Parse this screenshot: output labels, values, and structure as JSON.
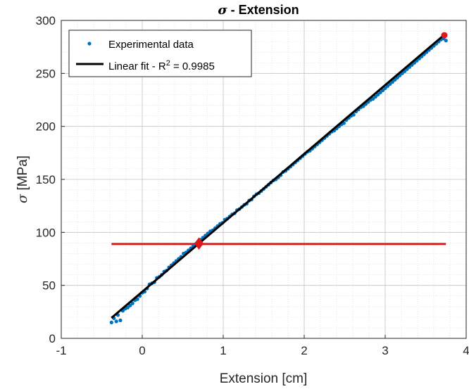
{
  "chart_data": {
    "type": "scatter",
    "title_symbol": "σ",
    "title_text": " - Extension",
    "xlabel": "Extension [cm]",
    "ylabel_symbol": "σ",
    "ylabel_text": " [MPa]",
    "xlim": [
      -1,
      4
    ],
    "ylim": [
      0,
      300
    ],
    "xticks": [
      -1,
      0,
      1,
      2,
      3,
      4
    ],
    "yticks": [
      0,
      50,
      100,
      150,
      200,
      250,
      300
    ],
    "grid": true,
    "minor_grid": true,
    "legend_position": "top-left",
    "fit": {
      "slope": 65.0,
      "intercept": 44.0,
      "x_range": [
        -0.38,
        3.75
      ]
    },
    "series": [
      {
        "name": "Experimental data",
        "kind": "points",
        "color": "#0072BD",
        "x": [
          -0.38,
          -0.35,
          -0.32,
          -0.3,
          -0.27,
          -0.24,
          -0.21,
          -0.18,
          -0.15,
          -0.12,
          -0.09,
          -0.06,
          -0.03,
          0.0,
          0.03,
          0.06,
          0.09,
          0.12,
          0.15,
          0.18,
          0.21,
          0.24,
          0.27,
          0.3,
          0.33,
          0.36,
          0.39,
          0.42,
          0.45,
          0.48,
          0.51,
          0.54,
          0.57,
          0.6,
          0.63,
          0.66,
          0.69,
          0.72,
          0.75,
          0.78,
          0.81,
          0.84,
          0.87,
          0.9,
          0.93,
          0.96,
          0.99,
          1.02,
          1.05,
          1.08,
          1.11,
          1.14,
          1.17,
          1.2,
          1.23,
          1.26,
          1.29,
          1.32,
          1.35,
          1.38,
          1.41,
          1.44,
          1.47,
          1.5,
          1.53,
          1.56,
          1.59,
          1.62,
          1.65,
          1.68,
          1.71,
          1.74,
          1.77,
          1.8,
          1.83,
          1.86,
          1.89,
          1.92,
          1.95,
          1.98,
          2.01,
          2.04,
          2.07,
          2.1,
          2.13,
          2.16,
          2.19,
          2.22,
          2.25,
          2.28,
          2.31,
          2.34,
          2.37,
          2.4,
          2.43,
          2.46,
          2.49,
          2.52,
          2.55,
          2.58,
          2.61,
          2.64,
          2.67,
          2.7,
          2.73,
          2.76,
          2.79,
          2.82,
          2.85,
          2.88,
          2.91,
          2.94,
          2.97,
          3.0,
          3.03,
          3.06,
          3.09,
          3.12,
          3.15,
          3.18,
          3.21,
          3.24,
          3.27,
          3.3,
          3.33,
          3.36,
          3.39,
          3.42,
          3.45,
          3.48,
          3.51,
          3.54,
          3.57,
          3.6,
          3.63,
          3.66,
          3.69,
          3.72,
          3.75
        ],
        "y": [
          15,
          19,
          16,
          22,
          17,
          26,
          28,
          29,
          31,
          33,
          36,
          37,
          40,
          43,
          44,
          47,
          51,
          52,
          53,
          57,
          58,
          60,
          63,
          64,
          67,
          69,
          71,
          73,
          75,
          77,
          80,
          81,
          83,
          85,
          87,
          89,
          90,
          93,
          95,
          97,
          99,
          101,
          102,
          104,
          106,
          108,
          109,
          112,
          113,
          115,
          117,
          118,
          121,
          122,
          124,
          126,
          127,
          130,
          131,
          134,
          136,
          137,
          139,
          141,
          143,
          145,
          147,
          149,
          150,
          152,
          154,
          157,
          158,
          160,
          162,
          164,
          166,
          168,
          170,
          172,
          174,
          176,
          177,
          179,
          181,
          183,
          185,
          187,
          189,
          191,
          193,
          195,
          196,
          198,
          200,
          202,
          203,
          206,
          208,
          210,
          211,
          214,
          216,
          218,
          219,
          221,
          223,
          225,
          226,
          228,
          230,
          232,
          234,
          236,
          238,
          240,
          242,
          244,
          246,
          248,
          250,
          252,
          254,
          256,
          258,
          260,
          262,
          264,
          266,
          268,
          270,
          272,
          274,
          276,
          278,
          280,
          282,
          283,
          281
        ]
      },
      {
        "name": "Linear fit - R",
        "name_sup": "2",
        "name_suffix": " = 0.9985",
        "kind": "line",
        "color": "#000000"
      }
    ],
    "markers": {
      "color": "#E0181A",
      "hline_y": 89,
      "hline_x_range": [
        -0.38,
        3.75
      ],
      "diamond": {
        "x": 0.7,
        "y": 89.5
      },
      "point": {
        "x": 3.73,
        "y": 286
      }
    }
  }
}
